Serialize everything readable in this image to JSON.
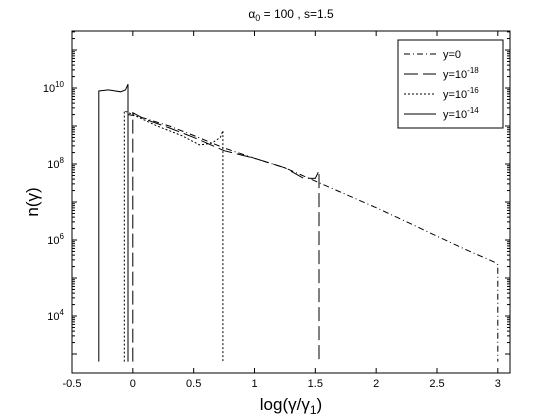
{
  "chart_data": {
    "type": "line",
    "title": {
      "base": "α",
      "sub": "0",
      "rest": " = 100 , s=1.5"
    },
    "xlabel": {
      "pre": "log(γ/γ",
      "sub": "1",
      "post": ")"
    },
    "ylabel": "n(γ)",
    "xlim": [
      -0.5,
      3.1
    ],
    "y_log10_lim": [
      2.5,
      11.5
    ],
    "y_scale": "log",
    "xticks": [
      {
        "v": -0.5,
        "label": "-0.5"
      },
      {
        "v": 0,
        "label": "0"
      },
      {
        "v": 0.5,
        "label": "0.5"
      },
      {
        "v": 1,
        "label": "1"
      },
      {
        "v": 1.5,
        "label": "1.5"
      },
      {
        "v": 2,
        "label": "2"
      },
      {
        "v": 2.5,
        "label": "2.5"
      },
      {
        "v": 3,
        "label": "3"
      }
    ],
    "yticks": [
      {
        "exp": 4,
        "base": "10",
        "sup": "4"
      },
      {
        "exp": 6,
        "base": "10",
        "sup": "6"
      },
      {
        "exp": 8,
        "base": "10",
        "sup": "8"
      },
      {
        "exp": 10,
        "base": "10",
        "sup": "10"
      }
    ],
    "legend_position": "top-right",
    "series": [
      {
        "name": "y=0",
        "label_base": "y=0",
        "label_sup": "",
        "dash": "6,3,1,3",
        "x": [
          -0.04,
          -0.04,
          0.0,
          0.1,
          0.3,
          0.5,
          0.75,
          1.0,
          1.25,
          1.5,
          1.75,
          2.0,
          2.25,
          2.5,
          2.75,
          2.97,
          3.0,
          3.0
        ],
        "y_log10": [
          2.8,
          9.3,
          9.28,
          9.2,
          9.0,
          8.75,
          8.42,
          8.15,
          7.9,
          7.55,
          7.2,
          6.85,
          6.48,
          6.1,
          5.73,
          5.42,
          5.35,
          2.8
        ]
      },
      {
        "name": "y=10^-18",
        "label_base": "y=10",
        "label_sup": "-18",
        "dash": "14,5",
        "x": [
          0.0,
          0.0,
          0.1,
          0.3,
          0.5,
          0.75,
          1.0,
          1.25,
          1.4,
          1.5,
          1.53,
          1.53
        ],
        "y_log10": [
          2.8,
          9.35,
          9.18,
          8.95,
          8.7,
          8.35,
          8.15,
          7.9,
          7.63,
          7.62,
          7.82,
          2.8
        ]
      },
      {
        "name": "y=10^-16",
        "label_base": "y=10",
        "label_sup": "-16",
        "dash": "2,2",
        "x": [
          -0.07,
          -0.07,
          0.0,
          0.2,
          0.4,
          0.55,
          0.65,
          0.72,
          0.74,
          0.74
        ],
        "y_log10": [
          2.8,
          9.4,
          9.3,
          9.0,
          8.75,
          8.5,
          8.55,
          8.7,
          8.88,
          2.8
        ]
      },
      {
        "name": "y=10^-14",
        "label_base": "y=10",
        "label_sup": "-14",
        "dash": "",
        "x": [
          -0.28,
          -0.28,
          -0.2,
          -0.1,
          -0.06,
          -0.04,
          -0.04
        ],
        "y_log10": [
          2.8,
          9.92,
          9.95,
          9.9,
          9.95,
          10.1,
          2.8
        ]
      }
    ]
  }
}
